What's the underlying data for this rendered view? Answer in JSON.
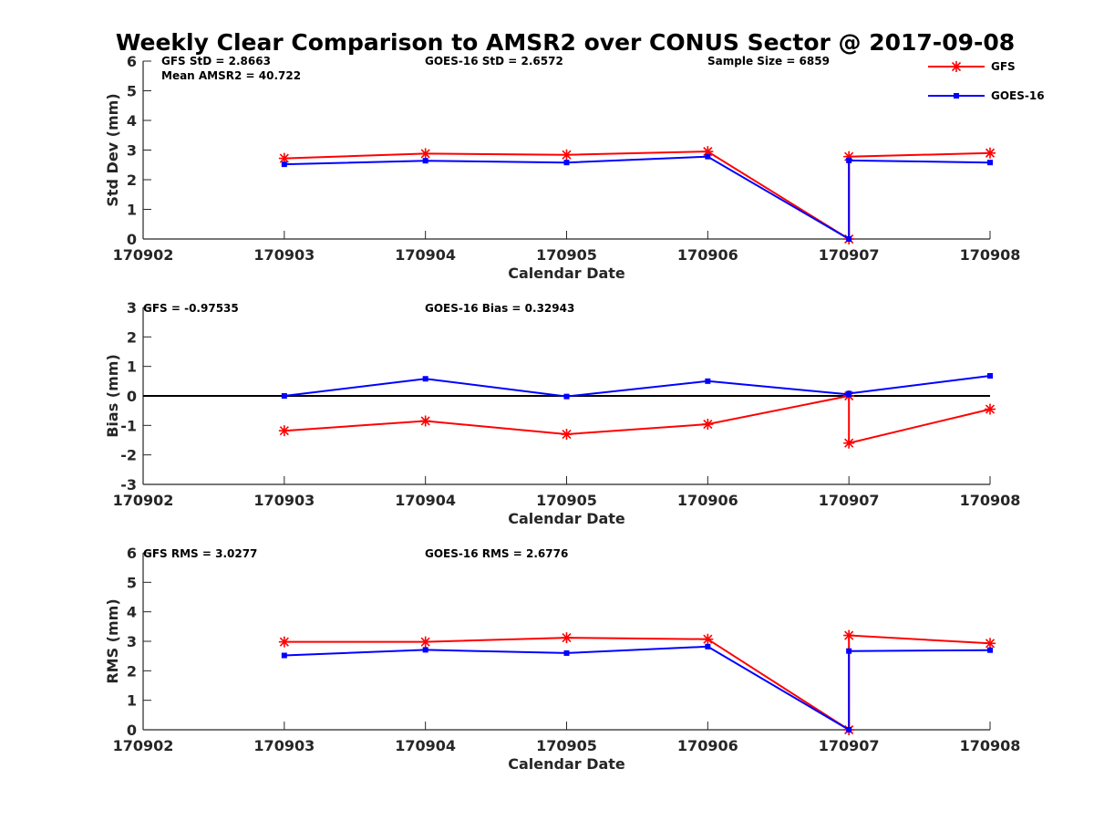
{
  "title": "Weekly Clear Comparison to AMSR2 over CONUS Sector @ 2017-09-08",
  "colors": {
    "gfs": "#ff0000",
    "goes": "#0000ff",
    "axis": "#262626",
    "zero": "#000000"
  },
  "chart_data": [
    {
      "type": "line",
      "xlabel": "Calendar Date",
      "ylabel": "Std Dev (mm)",
      "xlim": [
        0,
        6
      ],
      "ylim": [
        0,
        6
      ],
      "yticks": [
        0,
        1,
        2,
        3,
        4,
        5,
        6
      ],
      "xtick_labels": [
        "170902",
        "170903",
        "170904",
        "170905",
        "170906",
        "170907",
        "170908"
      ],
      "annotations": [
        "GFS StD = 2.8663",
        "Mean AMSR2 = 40.722",
        "GOES-16 StD = 2.6572",
        "Sample Size = 6859"
      ],
      "legend": {
        "position": "top-right",
        "entries": [
          "GFS",
          "GOES-16"
        ]
      },
      "series": [
        {
          "name": "GFS",
          "x": [
            1,
            2,
            3,
            4,
            5,
            5,
            6
          ],
          "values": [
            2.72,
            2.88,
            2.84,
            2.95,
            0.0,
            2.78,
            2.9
          ]
        },
        {
          "name": "GOES-16",
          "x": [
            1,
            2,
            3,
            4,
            5,
            5,
            6
          ],
          "values": [
            2.52,
            2.64,
            2.58,
            2.78,
            0.0,
            2.65,
            2.58
          ]
        }
      ]
    },
    {
      "type": "line",
      "xlabel": "Calendar Date",
      "ylabel": "Bias (mm)",
      "xlim": [
        0,
        6
      ],
      "ylim": [
        -3,
        3
      ],
      "yticks": [
        -3,
        -2,
        -1,
        0,
        1,
        2,
        3
      ],
      "xtick_labels": [
        "170902",
        "170903",
        "170904",
        "170905",
        "170906",
        "170907",
        "170908"
      ],
      "annotations": [
        "GFS = -0.97535",
        "GOES-16 Bias  = 0.32943"
      ],
      "zero_line": true,
      "series": [
        {
          "name": "GFS",
          "x": [
            1,
            2,
            3,
            4,
            5,
            5,
            6
          ],
          "values": [
            -1.18,
            -0.85,
            -1.3,
            -0.96,
            0.0,
            -1.6,
            -0.45
          ]
        },
        {
          "name": "GOES-16",
          "x": [
            1,
            2,
            3,
            4,
            5,
            5,
            6
          ],
          "values": [
            0.0,
            0.58,
            -0.02,
            0.5,
            0.05,
            0.08,
            0.68
          ]
        }
      ]
    },
    {
      "type": "line",
      "xlabel": "Calendar Date",
      "ylabel": "RMS (mm)",
      "xlim": [
        0,
        6
      ],
      "ylim": [
        0,
        6
      ],
      "yticks": [
        0,
        1,
        2,
        3,
        4,
        5,
        6
      ],
      "xtick_labels": [
        "170902",
        "170903",
        "170904",
        "170905",
        "170906",
        "170907",
        "170908"
      ],
      "annotations": [
        "GFS RMS = 3.0277",
        "GOES-16 RMS = 2.6776"
      ],
      "series": [
        {
          "name": "GFS",
          "x": [
            1,
            2,
            3,
            4,
            5,
            5,
            6
          ],
          "values": [
            2.98,
            2.98,
            3.12,
            3.07,
            0.0,
            3.2,
            2.93
          ]
        },
        {
          "name": "GOES-16",
          "x": [
            1,
            2,
            3,
            4,
            5,
            5,
            6
          ],
          "values": [
            2.52,
            2.71,
            2.6,
            2.82,
            0.0,
            2.67,
            2.7
          ]
        }
      ]
    }
  ]
}
